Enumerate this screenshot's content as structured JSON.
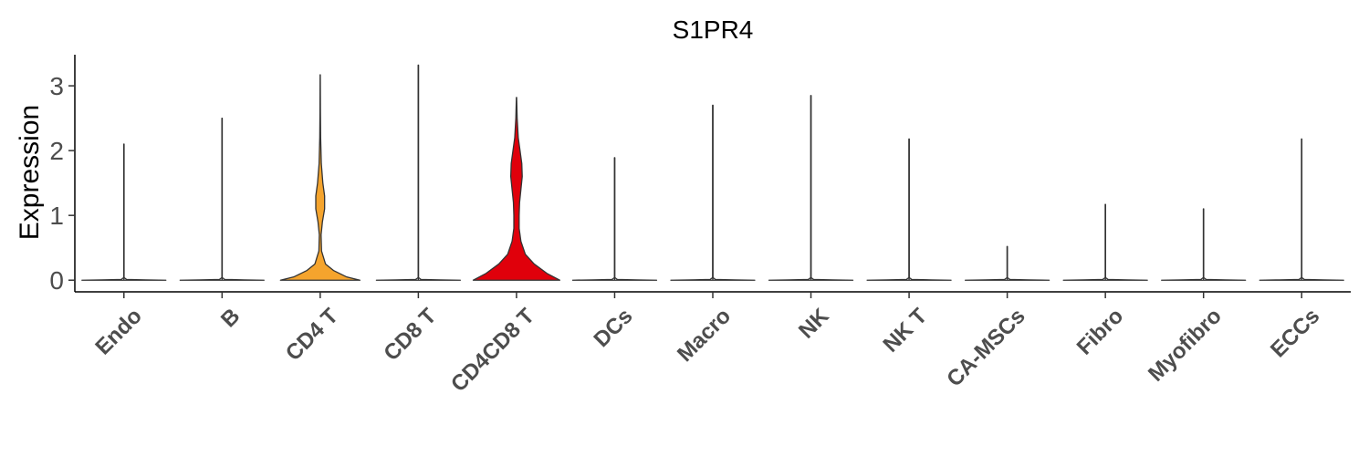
{
  "chart_data": {
    "type": "violin",
    "title": "S1PR4",
    "xlabel": "",
    "ylabel": "Expression",
    "ylim": [
      -0.18,
      3.48
    ],
    "yticks": [
      0,
      1,
      2,
      3
    ],
    "grid": false,
    "legend": "none",
    "categories": [
      "Endo",
      "B",
      "CD4 T",
      "CD8 T",
      "CD4CD8 T",
      "DCs",
      "Macro",
      "NK",
      "NK T",
      "CA-MSCs",
      "Fibro",
      "Myofibro",
      "ECCs"
    ],
    "max_values": [
      2.1,
      2.5,
      3.17,
      3.32,
      2.82,
      1.89,
      2.7,
      2.85,
      2.18,
      0.52,
      1.17,
      1.1,
      2.18
    ],
    "fill_colors": [
      "#ffffff",
      "#ffffff",
      "#f5a42d",
      "#ffffff",
      "#e0000b",
      "#ffffff",
      "#ffffff",
      "#ffffff",
      "#ffffff",
      "#ffffff",
      "#ffffff",
      "#ffffff",
      "#ffffff"
    ],
    "density_profiles": {
      "CD4 T": [
        [
          0,
          0.9
        ],
        [
          0.05,
          0.6
        ],
        [
          0.15,
          0.3
        ],
        [
          0.25,
          0.12
        ],
        [
          0.45,
          0.03
        ],
        [
          0.7,
          0.02
        ],
        [
          0.9,
          0.05
        ],
        [
          1.1,
          0.1
        ],
        [
          1.3,
          0.1
        ],
        [
          1.5,
          0.06
        ],
        [
          1.8,
          0.025
        ],
        [
          2.2,
          0.01
        ],
        [
          2.6,
          0.005
        ],
        [
          3.17,
          0.002
        ]
      ],
      "CD4CD8 T": [
        [
          0,
          0.98
        ],
        [
          0.1,
          0.7
        ],
        [
          0.25,
          0.4
        ],
        [
          0.4,
          0.2
        ],
        [
          0.6,
          0.1
        ],
        [
          0.8,
          0.06
        ],
        [
          1.0,
          0.06
        ],
        [
          1.2,
          0.07
        ],
        [
          1.4,
          0.1
        ],
        [
          1.6,
          0.13
        ],
        [
          1.8,
          0.12
        ],
        [
          2.0,
          0.08
        ],
        [
          2.2,
          0.04
        ],
        [
          2.5,
          0.015
        ],
        [
          2.82,
          0.003
        ]
      ]
    }
  }
}
